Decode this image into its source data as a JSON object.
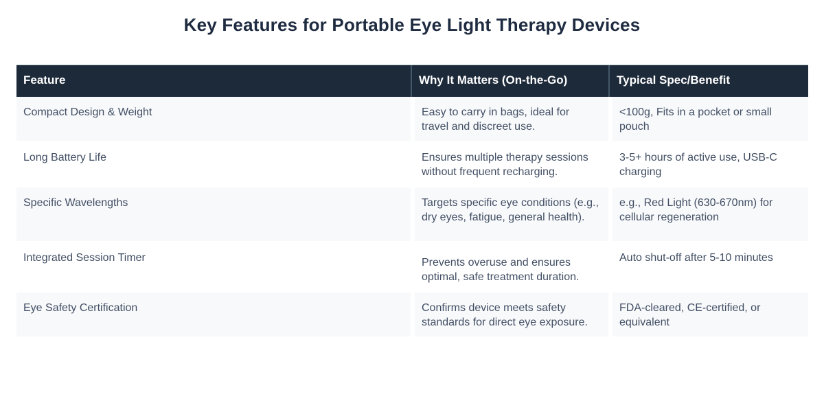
{
  "page": {
    "title": "Key Features for Portable Eye Light Therapy Devices"
  },
  "colors": {
    "header_background": "#1d2a3a",
    "header_text": "#ffffff",
    "header_divider": "#45596a",
    "row_alt_background": "#f8f9fb",
    "body_text": "#414e63",
    "title_text": "#1e2b40"
  },
  "table": {
    "columns": [
      "Feature",
      "Why It Matters (On-the-Go)",
      "Typical Spec/Benefit"
    ],
    "rows": [
      {
        "feature": "Compact Design & Weight",
        "why": "Easy to carry in bags, ideal for travel and discreet use.",
        "spec": "<100g, Fits in a pocket or small pouch"
      },
      {
        "feature": "Long Battery Life",
        "why": "Ensures multiple therapy sessions without frequent recharging.",
        "spec": "3-5+ hours of active use, USB-C charging"
      },
      {
        "feature": "Specific Wavelengths",
        "why": "Targets specific eye conditions (e.g., dry eyes, fatigue, general health).",
        "spec": "e.g., Red Light (630-670nm) for cellular regeneration"
      },
      {
        "feature": "Integrated Session Timer",
        "why": "Prevents overuse and ensures optimal, safe treatment duration.",
        "spec": "Auto shut-off after 5-10 minutes"
      },
      {
        "feature": "Eye Safety Certification",
        "why": "Confirms device meets safety standards for direct eye exposure.",
        "spec": "FDA-cleared, CE-certified, or equivalent"
      }
    ]
  }
}
